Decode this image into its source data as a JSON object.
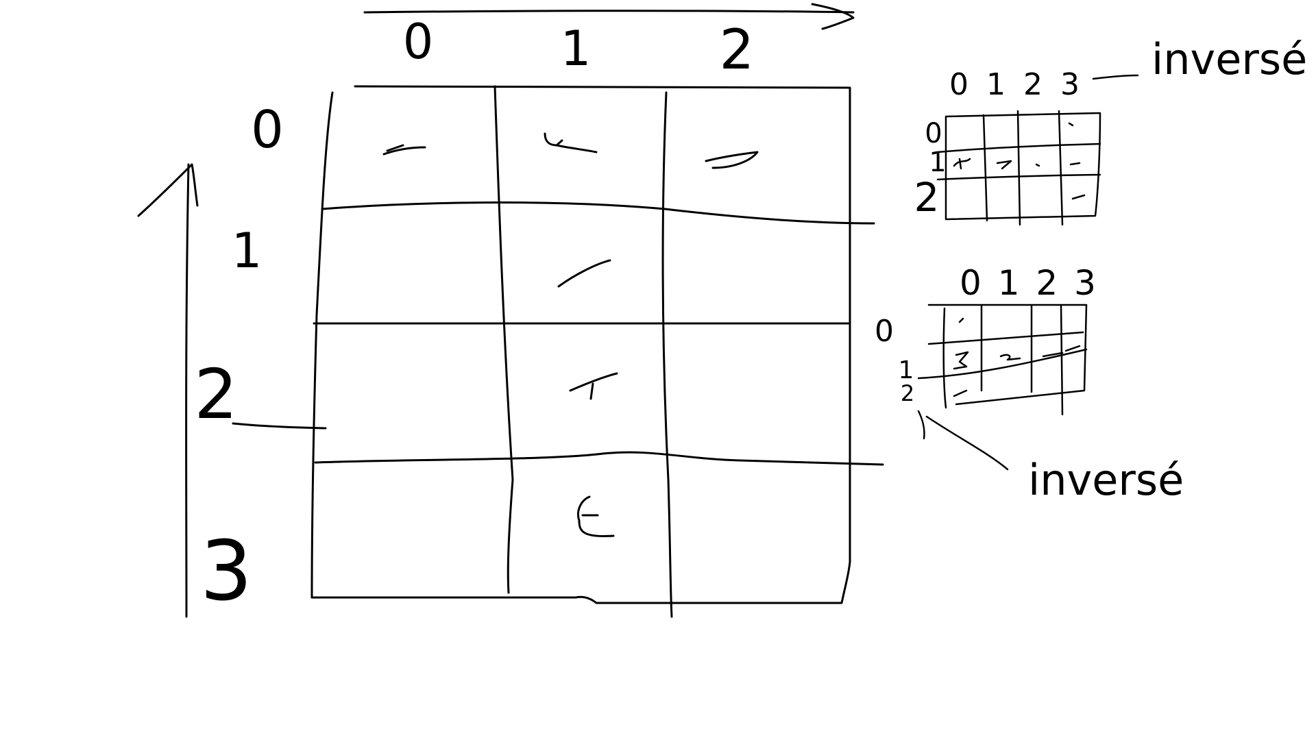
{
  "main_grid": {
    "column_labels": [
      "0",
      "1",
      "2"
    ],
    "row_labels": [
      "0",
      "1",
      "2",
      "3"
    ]
  },
  "mini_grid_top": {
    "column_labels": "0 1 2 3",
    "row_labels": [
      "0",
      "1",
      "2"
    ],
    "annotation": "inversé"
  },
  "mini_grid_bottom": {
    "column_labels": "0 1 2 3",
    "row_labels": [
      "0",
      "1",
      "2"
    ],
    "annotation": "inversé"
  }
}
